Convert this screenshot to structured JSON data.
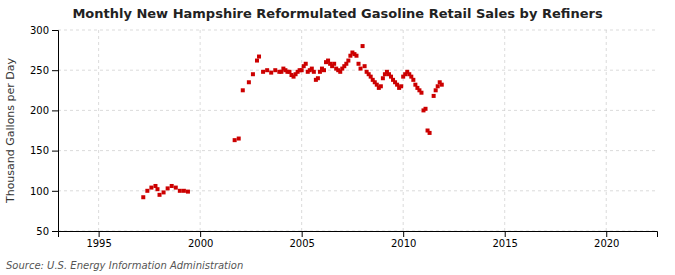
{
  "chart_data": {
    "type": "scatter",
    "title": "Monthly New Hampshire Reformulated Gasoline Retail Sales by Refiners",
    "y_label": "Thousand Gallons per Day",
    "source": "Source: U.S. Energy Information Administration",
    "color": "#cc0000",
    "marker": "square",
    "grid": true,
    "xlim": [
      1993.0,
      2022.5
    ],
    "ylim": [
      50,
      300
    ],
    "xticks": [
      1995,
      2000,
      2005,
      2010,
      2015,
      2020
    ],
    "yticks": [
      50,
      100,
      150,
      200,
      250,
      300
    ],
    "x": [
      1997.2,
      1997.4,
      1997.6,
      1997.8,
      1997.9,
      1998.0,
      1998.2,
      1998.4,
      1998.6,
      1998.8,
      1999.0,
      1999.2,
      1999.4,
      2001.7,
      2001.9,
      2002.1,
      2002.4,
      2002.6,
      2002.8,
      2002.9,
      2003.1,
      2003.3,
      2003.5,
      2003.7,
      2003.9,
      2004.0,
      2004.1,
      2004.2,
      2004.3,
      2004.4,
      2004.5,
      2004.6,
      2004.7,
      2004.8,
      2004.9,
      2005.0,
      2005.1,
      2005.2,
      2005.3,
      2005.4,
      2005.5,
      2005.6,
      2005.7,
      2005.8,
      2005.9,
      2006.0,
      2006.1,
      2006.2,
      2006.3,
      2006.4,
      2006.5,
      2006.6,
      2006.7,
      2006.8,
      2006.9,
      2007.0,
      2007.1,
      2007.2,
      2007.3,
      2007.4,
      2007.5,
      2007.6,
      2007.7,
      2007.8,
      2007.9,
      2008.0,
      2008.1,
      2008.2,
      2008.3,
      2008.4,
      2008.5,
      2008.6,
      2008.7,
      2008.8,
      2008.9,
      2009.0,
      2009.1,
      2009.2,
      2009.3,
      2009.4,
      2009.5,
      2009.6,
      2009.7,
      2009.8,
      2009.9,
      2010.0,
      2010.1,
      2010.2,
      2010.3,
      2010.4,
      2010.5,
      2010.6,
      2010.7,
      2010.8,
      2010.9,
      2011.0,
      2011.1,
      2011.2,
      2011.3,
      2011.5,
      2011.6,
      2011.7,
      2011.8,
      2011.9
    ],
    "values": [
      92,
      100,
      104,
      106,
      102,
      95,
      98,
      103,
      106,
      104,
      100,
      100,
      99,
      163,
      165,
      225,
      235,
      245,
      262,
      267,
      248,
      250,
      247,
      250,
      248,
      248,
      252,
      250,
      248,
      248,
      244,
      242,
      245,
      248,
      250,
      250,
      255,
      258,
      248,
      250,
      252,
      248,
      238,
      240,
      248,
      252,
      250,
      260,
      262,
      258,
      255,
      258,
      252,
      250,
      248,
      252,
      255,
      258,
      262,
      268,
      272,
      270,
      268,
      258,
      252,
      280,
      255,
      248,
      245,
      242,
      238,
      235,
      232,
      228,
      230,
      240,
      245,
      248,
      245,
      242,
      238,
      235,
      232,
      228,
      230,
      242,
      245,
      248,
      245,
      242,
      238,
      232,
      228,
      225,
      222,
      200,
      202,
      175,
      172,
      218,
      225,
      230,
      235,
      232
    ]
  }
}
